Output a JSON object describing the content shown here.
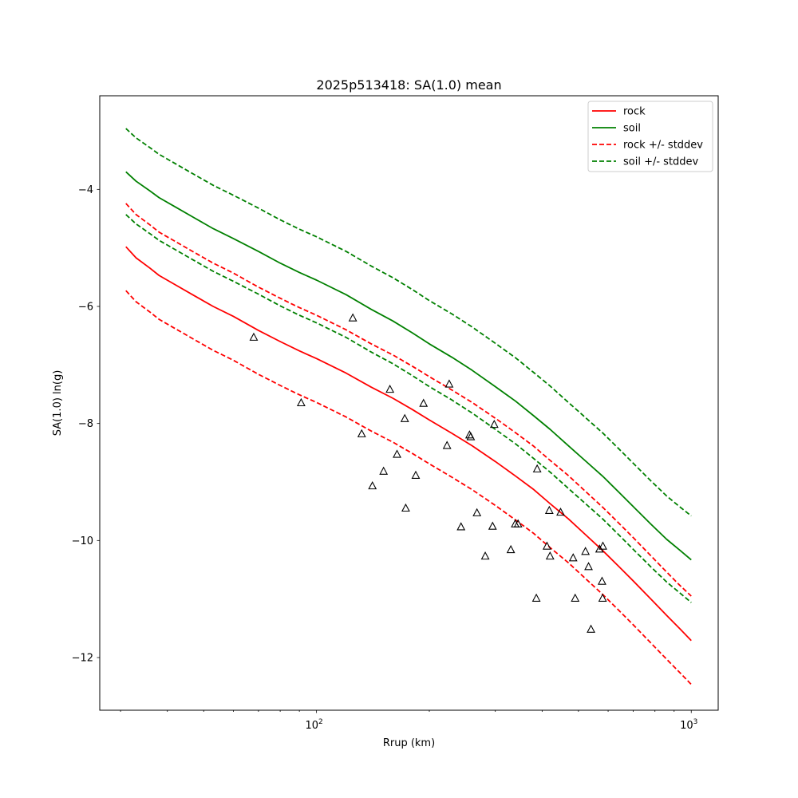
{
  "chart_data": {
    "type": "line",
    "title": "2025p513418: SA(1.0) mean",
    "xlabel": "Rrup (km)",
    "ylabel": "SA(1.0) ln(g)",
    "xscale": "log",
    "xlim": [
      26.4,
      1180
    ],
    "ylim": [
      -12.9,
      -2.4
    ],
    "xticks": [
      {
        "value": 100,
        "base": "10",
        "exp": "2"
      },
      {
        "value": 1000,
        "base": "10",
        "exp": "3"
      }
    ],
    "yticks": [
      -12,
      -10,
      -8,
      -6,
      -4
    ],
    "ytick_labels": [
      "−12",
      "−10",
      "−8",
      "−6",
      "−4"
    ],
    "legend_position": "top-right",
    "x": [
      31,
      33,
      36,
      38,
      42,
      47,
      53,
      60,
      70,
      80,
      90,
      100,
      120,
      140,
      160,
      180,
      200,
      230,
      260,
      300,
      340,
      380,
      420,
      470,
      520,
      580,
      640,
      700,
      780,
      860,
      930,
      1000
    ],
    "series": [
      {
        "name": "rock",
        "color": "#ff0000",
        "dash": "solid",
        "values": [
          -4.98,
          -5.17,
          -5.35,
          -5.47,
          -5.63,
          -5.81,
          -6.0,
          -6.17,
          -6.41,
          -6.6,
          -6.76,
          -6.89,
          -7.14,
          -7.38,
          -7.57,
          -7.76,
          -7.94,
          -8.17,
          -8.38,
          -8.65,
          -8.9,
          -9.13,
          -9.37,
          -9.63,
          -9.89,
          -10.17,
          -10.44,
          -10.69,
          -11.0,
          -11.28,
          -11.5,
          -11.71
        ]
      },
      {
        "name": "soil",
        "color": "#008000",
        "dash": "solid",
        "values": [
          -3.7,
          -3.86,
          -4.03,
          -4.14,
          -4.3,
          -4.48,
          -4.67,
          -4.84,
          -5.06,
          -5.26,
          -5.42,
          -5.55,
          -5.8,
          -6.05,
          -6.25,
          -6.45,
          -6.64,
          -6.87,
          -7.09,
          -7.37,
          -7.62,
          -7.87,
          -8.1,
          -8.38,
          -8.63,
          -8.9,
          -9.17,
          -9.42,
          -9.72,
          -9.98,
          -10.16,
          -10.33
        ]
      },
      {
        "name": "rock +/- stddev",
        "color": "#ff0000",
        "dash": "dashed",
        "values": [
          -4.24,
          -4.43,
          -4.61,
          -4.73,
          -4.89,
          -5.07,
          -5.26,
          -5.43,
          -5.67,
          -5.86,
          -6.02,
          -6.15,
          -6.4,
          -6.64,
          -6.83,
          -7.02,
          -7.2,
          -7.43,
          -7.64,
          -7.91,
          -8.16,
          -8.39,
          -8.63,
          -8.89,
          -9.15,
          -9.43,
          -9.7,
          -9.95,
          -10.26,
          -10.54,
          -10.76,
          -10.95
        ]
      },
      {
        "name": "",
        "color": "#ff0000",
        "dash": "dashed",
        "values": [
          -5.73,
          -5.92,
          -6.1,
          -6.22,
          -6.38,
          -6.56,
          -6.75,
          -6.92,
          -7.16,
          -7.35,
          -7.51,
          -7.64,
          -7.89,
          -8.13,
          -8.32,
          -8.51,
          -8.69,
          -8.92,
          -9.13,
          -9.4,
          -9.65,
          -9.88,
          -10.12,
          -10.38,
          -10.64,
          -10.92,
          -11.19,
          -11.44,
          -11.75,
          -12.03,
          -12.25,
          -12.46
        ]
      },
      {
        "name": "soil +/- stddev",
        "color": "#008000",
        "dash": "dashed",
        "values": [
          -2.96,
          -3.12,
          -3.29,
          -3.4,
          -3.56,
          -3.74,
          -3.93,
          -4.1,
          -4.32,
          -4.52,
          -4.68,
          -4.81,
          -5.06,
          -5.31,
          -5.51,
          -5.71,
          -5.9,
          -6.13,
          -6.35,
          -6.63,
          -6.88,
          -7.13,
          -7.36,
          -7.64,
          -7.89,
          -8.16,
          -8.43,
          -8.68,
          -8.98,
          -9.24,
          -9.42,
          -9.58
        ]
      },
      {
        "name": "",
        "color": "#008000",
        "dash": "dashed",
        "values": [
          -4.43,
          -4.59,
          -4.76,
          -4.87,
          -5.03,
          -5.21,
          -5.4,
          -5.57,
          -5.79,
          -5.99,
          -6.15,
          -6.28,
          -6.53,
          -6.78,
          -6.98,
          -7.18,
          -7.37,
          -7.6,
          -7.82,
          -8.1,
          -8.35,
          -8.6,
          -8.83,
          -9.11,
          -9.36,
          -9.63,
          -9.9,
          -10.15,
          -10.45,
          -10.71,
          -10.89,
          -11.06
        ]
      }
    ],
    "observations": {
      "marker": "triangle",
      "points": [
        [
          68,
          -6.53
        ],
        [
          91,
          -7.65
        ],
        [
          125,
          -6.2
        ],
        [
          132,
          -8.18
        ],
        [
          141,
          -9.07
        ],
        [
          151,
          -8.82
        ],
        [
          157,
          -7.42
        ],
        [
          164,
          -8.53
        ],
        [
          172,
          -7.92
        ],
        [
          173,
          -9.45
        ],
        [
          184,
          -8.89
        ],
        [
          193,
          -7.66
        ],
        [
          223,
          -8.38
        ],
        [
          226,
          -7.33
        ],
        [
          243,
          -9.77
        ],
        [
          256,
          -8.2
        ],
        [
          258,
          -8.23
        ],
        [
          268,
          -9.53
        ],
        [
          282,
          -10.27
        ],
        [
          295,
          -9.76
        ],
        [
          298,
          -8.02
        ],
        [
          330,
          -10.16
        ],
        [
          339,
          -9.72
        ],
        [
          345,
          -9.72
        ],
        [
          386,
          -10.99
        ],
        [
          388,
          -8.78
        ],
        [
          412,
          -10.1
        ],
        [
          418,
          -9.49
        ],
        [
          420,
          -10.27
        ],
        [
          448,
          -9.52
        ],
        [
          484,
          -10.3
        ],
        [
          490,
          -10.99
        ],
        [
          522,
          -10.19
        ],
        [
          532,
          -10.45
        ],
        [
          540,
          -11.52
        ],
        [
          569,
          -10.15
        ],
        [
          578,
          -10.7
        ],
        [
          580,
          -10.99
        ],
        [
          581,
          -10.1
        ]
      ]
    }
  }
}
